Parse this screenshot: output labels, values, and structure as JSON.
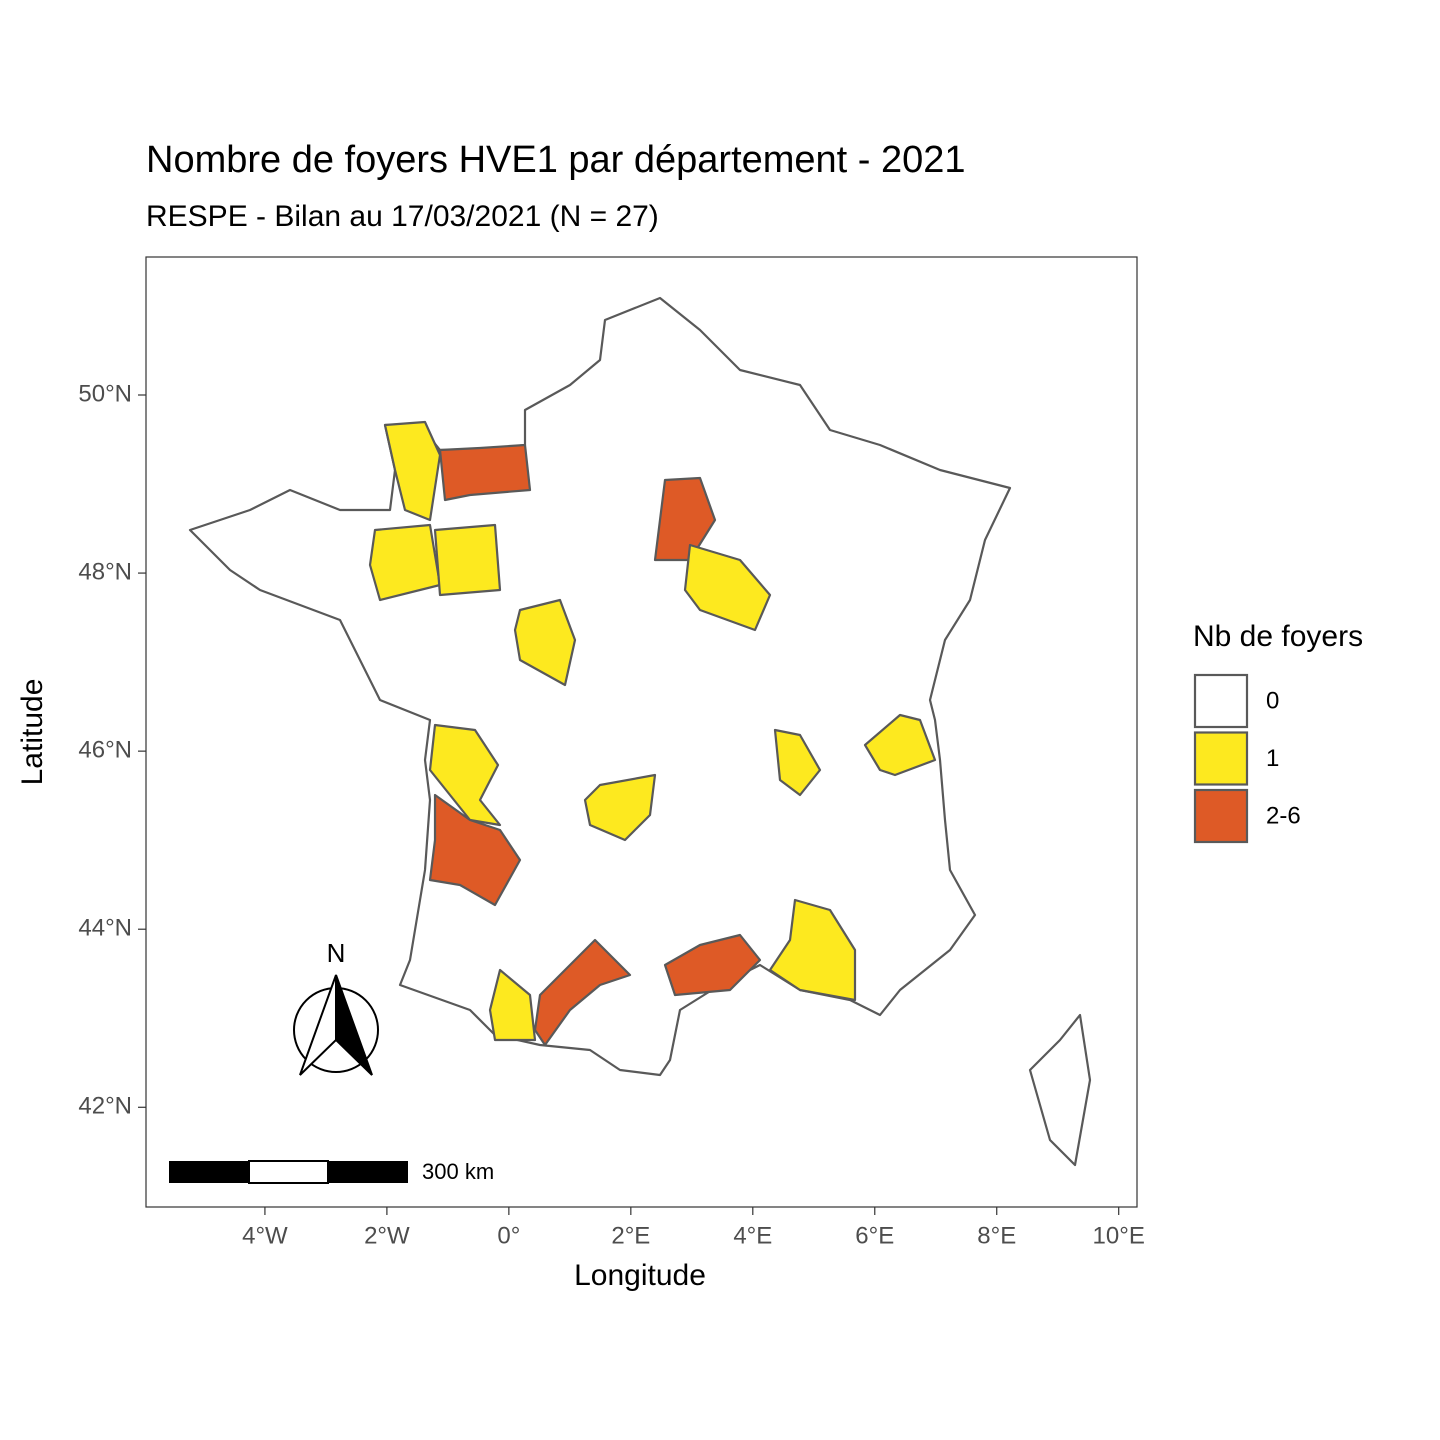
{
  "chart_data": {
    "type": "map",
    "title": "Nombre de foyers HVE1 par département - 2021",
    "subtitle": "RESPE - Bilan au 17/03/2021 (N = 27)",
    "x_label": "Longitude",
    "y_label": "Latitude",
    "xlim": [
      -5.95,
      10.3
    ],
    "ylim": [
      40.88,
      51.55
    ],
    "xticks": [
      {
        "value": -4,
        "label": "4°W"
      },
      {
        "value": -2,
        "label": "2°W"
      },
      {
        "value": 0,
        "label": "0°"
      },
      {
        "value": 2,
        "label": "2°E"
      },
      {
        "value": 4,
        "label": "4°E"
      },
      {
        "value": 6,
        "label": "6°E"
      },
      {
        "value": 8,
        "label": "8°E"
      },
      {
        "value": 10,
        "label": "10°E"
      }
    ],
    "yticks": [
      {
        "value": 42,
        "label": "42°N"
      },
      {
        "value": 44,
        "label": "44°N"
      },
      {
        "value": 46,
        "label": "46°N"
      },
      {
        "value": 48,
        "label": "48°N"
      },
      {
        "value": 50,
        "label": "50°N"
      }
    ],
    "grid": false,
    "legend": {
      "title": "Nb de foyers",
      "items": [
        {
          "label": "0",
          "color": "#ffffff"
        },
        {
          "label": "1",
          "color": "#fde91f"
        },
        {
          "label": "2-6",
          "color": "#de5a26"
        }
      ]
    },
    "north_label": "N",
    "scale_label": "300 km"
  }
}
